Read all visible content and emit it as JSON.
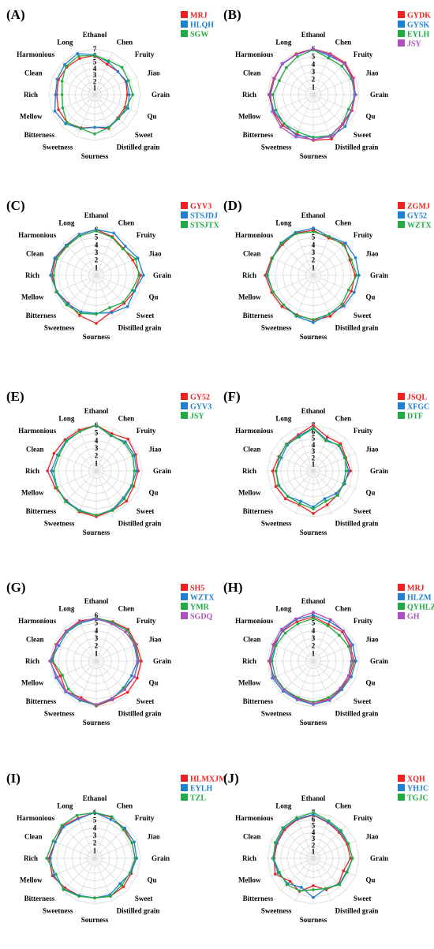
{
  "axes": [
    "Ethanol",
    "Chen",
    "Fruity",
    "Jiao",
    "Grain",
    "Qu",
    "Sweet",
    "Distilled grain",
    "Sourness",
    "Sweetness",
    "Bitterness",
    "Mellow",
    "Rich",
    "Clean",
    "Harmonious",
    "Long"
  ],
  "ticks": [
    "1",
    "2",
    "3",
    "4",
    "5",
    "6",
    "7"
  ],
  "colors": {
    "red": "#ee2222",
    "blue": "#1f7fd0",
    "green": "#22aa44",
    "purple": "#b04fc0"
  },
  "chart_data": [
    {
      "type": "radar",
      "panel": "(A)",
      "rmax": 7,
      "series": [
        {
          "name": "MRJ",
          "color": "red",
          "values": [
            6.0,
            5.0,
            5.0,
            5.2,
            5.0,
            5.0,
            5.0,
            5.6,
            5.0,
            5.5,
            6.0,
            6.0,
            5.8,
            6.0,
            6.0,
            6.0
          ]
        },
        {
          "name": "HLQH",
          "color": "blue",
          "values": [
            6.1,
            5.4,
            5.0,
            5.3,
            5.3,
            5.5,
            5.1,
            5.4,
            5.0,
            5.6,
            6.3,
            6.6,
            6.0,
            6.2,
            6.5,
            6.8
          ]
        },
        {
          "name": "SGW",
          "color": "green",
          "values": [
            6.0,
            5.6,
            5.9,
            5.6,
            5.8,
            5.2,
            5.2,
            5.5,
            6.0,
            5.6,
            6.0,
            5.3,
            5.0,
            5.4,
            6.2,
            6.4
          ]
        }
      ]
    },
    {
      "type": "radar",
      "panel": "(B)",
      "rmax": 6,
      "series": [
        {
          "name": "GYDK",
          "color": "red",
          "values": [
            6.0,
            5.8,
            5.9,
            5.7,
            5.5,
            5.5,
            5.5,
            6.3,
            6.0,
            5.6,
            5.7,
            5.7,
            5.8,
            5.6,
            5.7,
            5.8
          ]
        },
        {
          "name": "GYSK",
          "color": "blue",
          "values": [
            6.0,
            5.5,
            5.8,
            5.5,
            5.4,
            5.4,
            5.9,
            6.0,
            5.6,
            5.8,
            5.4,
            5.6,
            5.7,
            5.5,
            5.7,
            5.7
          ]
        },
        {
          "name": "EYLH",
          "color": "green",
          "values": [
            5.9,
            5.2,
            5.3,
            5.4,
            5.6,
            5.0,
            5.4,
            5.8,
            5.6,
            5.3,
            5.4,
            5.3,
            5.3,
            4.8,
            5.0,
            5.4
          ]
        },
        {
          "name": "JSY",
          "color": "purple",
          "values": [
            6.0,
            5.7,
            5.7,
            5.6,
            5.5,
            5.4,
            5.4,
            5.9,
            5.9,
            6.0,
            6.0,
            5.8,
            5.6,
            5.5,
            5.8,
            5.7
          ]
        }
      ]
    },
    {
      "type": "radar",
      "panel": "(C)",
      "rmax": 6,
      "series": [
        {
          "name": "GYV3",
          "color": "red",
          "values": [
            6.0,
            5.5,
            5.0,
            5.2,
            5.8,
            5.4,
            5.2,
            5.2,
            6.3,
            5.7,
            5.2,
            5.6,
            5.8,
            5.8,
            5.5,
            5.8
          ]
        },
        {
          "name": "STSJDJ",
          "color": "blue",
          "values": [
            6.0,
            6.0,
            5.4,
            5.9,
            6.2,
            5.4,
            5.8,
            5.3,
            5.0,
            5.2,
            5.3,
            5.6,
            6.0,
            5.9,
            5.6,
            5.8
          ]
        },
        {
          "name": "STSJTX",
          "color": "green",
          "values": [
            5.8,
            5.4,
            4.9,
            5.6,
            5.6,
            5.1,
            5.0,
            4.6,
            5.1,
            5.4,
            5.5,
            5.7,
            5.6,
            5.6,
            5.4,
            5.6
          ]
        }
      ]
    },
    {
      "type": "radar",
      "panel": "(D)",
      "rmax": 6,
      "series": [
        {
          "name": "ZGMJ",
          "color": "red",
          "values": [
            5.9,
            5.3,
            5.8,
            5.2,
            5.5,
            5.4,
            5.5,
            5.8,
            5.9,
            5.6,
            5.8,
            5.9,
            6.3,
            5.9,
            5.7,
            6.0
          ]
        },
        {
          "name": "GY52",
          "color": "blue",
          "values": [
            6.2,
            5.5,
            6.0,
            6.0,
            6.0,
            5.8,
            5.7,
            5.5,
            6.2,
            5.8,
            5.5,
            5.7,
            6.1,
            5.8,
            6.0,
            6.1
          ]
        },
        {
          "name": "WZTX",
          "color": "green",
          "values": [
            5.7,
            5.5,
            5.6,
            5.4,
            5.7,
            5.0,
            5.3,
            5.5,
            5.8,
            5.7,
            5.5,
            5.7,
            6.0,
            5.8,
            5.9,
            5.9
          ]
        }
      ]
    },
    {
      "type": "radar",
      "panel": "(E)",
      "rmax": 6,
      "series": [
        {
          "name": "GY52",
          "color": "red",
          "values": [
            6.0,
            5.3,
            5.9,
            5.6,
            5.5,
            5.3,
            5.6,
            5.6,
            6.0,
            5.8,
            5.5,
            5.8,
            6.4,
            6.0,
            5.8,
            5.8
          ]
        },
        {
          "name": "GYV3",
          "color": "blue",
          "values": [
            6.0,
            5.0,
            5.4,
            5.4,
            5.3,
            5.0,
            5.0,
            5.5,
            5.8,
            5.6,
            5.6,
            5.6,
            5.9,
            5.5,
            5.6,
            5.6
          ]
        },
        {
          "name": "JSY",
          "color": "green",
          "values": [
            6.0,
            5.1,
            5.2,
            5.2,
            5.0,
            5.1,
            5.2,
            5.6,
            5.8,
            5.7,
            5.7,
            5.6,
            5.6,
            5.3,
            5.5,
            5.6
          ]
        }
      ]
    },
    {
      "type": "radar",
      "panel": "(F)",
      "rmax": 7,
      "series": [
        {
          "name": "JSQL",
          "color": "red",
          "values": [
            7.0,
            5.6,
            5.9,
            5.4,
            5.7,
            5.0,
            5.2,
            5.6,
            6.5,
            5.6,
            6.0,
            6.2,
            6.2,
            5.7,
            5.8,
            6.0
          ]
        },
        {
          "name": "XFGC",
          "color": "blue",
          "values": [
            6.6,
            5.2,
            5.5,
            5.2,
            5.4,
            5.2,
            4.9,
            4.6,
            5.5,
            5.0,
            5.5,
            5.7,
            5.7,
            5.3,
            5.6,
            5.8
          ]
        },
        {
          "name": "DTF",
          "color": "green",
          "values": [
            6.5,
            5.0,
            5.6,
            5.3,
            5.0,
            5.0,
            5.3,
            5.0,
            5.8,
            5.4,
            5.5,
            5.8,
            5.7,
            5.6,
            5.8,
            5.6
          ]
        }
      ]
    },
    {
      "type": "radar",
      "panel": "(G)",
      "rmax": 6,
      "series": [
        {
          "name": "SH5",
          "color": "red",
          "values": [
            5.6,
            5.6,
            5.9,
            5.7,
            5.9,
            5.8,
            5.8,
            5.5,
            5.9,
            5.2,
            5.6,
            5.1,
            5.8,
            5.7,
            5.6,
            5.7
          ]
        },
        {
          "name": "WZTX",
          "color": "blue",
          "values": [
            5.5,
            5.4,
            5.7,
            5.4,
            5.4,
            5.0,
            5.0,
            5.4,
            5.8,
            5.6,
            5.7,
            5.7,
            6.0,
            5.3,
            5.4,
            5.4
          ]
        },
        {
          "name": "YMR",
          "color": "green",
          "values": [
            5.7,
            5.5,
            5.7,
            5.6,
            5.6,
            5.4,
            5.1,
            5.3,
            5.8,
            5.5,
            5.2,
            4.8,
            5.7,
            5.6,
            5.5,
            5.5
          ]
        },
        {
          "name": "SGDQ",
          "color": "purple",
          "values": [
            5.6,
            5.3,
            5.4,
            5.5,
            5.5,
            5.4,
            5.3,
            5.3,
            5.7,
            5.4,
            5.6,
            5.5,
            6.1,
            5.6,
            5.6,
            5.6
          ]
        }
      ]
    },
    {
      "type": "radar",
      "panel": "(H)",
      "rmax": 6,
      "series": [
        {
          "name": "MRJ",
          "color": "red",
          "values": [
            5.8,
            5.2,
            5.4,
            5.2,
            5.4,
            5.2,
            5.2,
            5.4,
            5.4,
            5.3,
            5.4,
            5.6,
            5.8,
            5.6,
            5.6,
            5.6
          ]
        },
        {
          "name": "HLZM",
          "color": "blue",
          "values": [
            6.0,
            5.6,
            5.6,
            5.6,
            5.6,
            5.4,
            5.3,
            5.6,
            5.7,
            5.5,
            5.6,
            5.8,
            5.6,
            5.4,
            5.7,
            5.9
          ]
        },
        {
          "name": "QYHLZM",
          "color": "green",
          "values": [
            5.6,
            5.0,
            4.8,
            5.0,
            5.2,
            5.0,
            5.1,
            5.2,
            5.4,
            5.2,
            5.3,
            5.4,
            5.4,
            5.3,
            5.2,
            5.3
          ]
        },
        {
          "name": "GH",
          "color": "purple",
          "values": [
            6.4,
            5.9,
            5.6,
            5.4,
            5.0,
            5.0,
            5.0,
            5.5,
            5.6,
            5.4,
            5.4,
            5.6,
            5.7,
            5.7,
            5.9,
            6.0
          ]
        }
      ]
    },
    {
      "type": "radar",
      "panel": "(I)",
      "rmax": 6,
      "series": [
        {
          "name": "HLMXJM",
          "color": "red",
          "values": [
            6.0,
            5.8,
            5.5,
            5.3,
            5.3,
            5.2,
            5.3,
            5.4,
            5.2,
            5.3,
            5.5,
            6.0,
            6.0,
            5.6,
            6.0,
            5.7
          ]
        },
        {
          "name": "EYLH",
          "color": "blue",
          "values": [
            6.0,
            5.5,
            5.6,
            5.6,
            5.5,
            5.1,
            4.7,
            5.2,
            5.2,
            5.3,
            5.7,
            5.8,
            5.8,
            5.6,
            5.8,
            5.6
          ]
        },
        {
          "name": "TZL",
          "color": "green",
          "values": [
            6.0,
            5.9,
            5.3,
            5.3,
            5.3,
            5.0,
            5.0,
            5.4,
            5.2,
            5.4,
            5.8,
            5.5,
            6.3,
            5.9,
            6.1,
            6.1
          ]
        }
      ]
    },
    {
      "type": "radar",
      "panel": "(J)",
      "rmax": 7,
      "series": [
        {
          "name": "XQH",
          "color": "red",
          "values": [
            6.6,
            5.9,
            5.6,
            5.6,
            5.7,
            5.0,
            5.5,
            5.2,
            4.2,
            5.5,
            5.0,
            6.3,
            6.0,
            6.0,
            6.2,
            6.4
          ]
        },
        {
          "name": "YHJC",
          "color": "blue",
          "values": [
            6.7,
            6.0,
            5.8,
            5.8,
            6.0,
            5.5,
            5.6,
            5.0,
            6.0,
            4.8,
            5.5,
            5.8,
            6.2,
            6.1,
            6.4,
            6.5
          ]
        },
        {
          "name": "TGJC",
          "color": "green",
          "values": [
            7.0,
            6.2,
            6.0,
            5.8,
            6.0,
            5.6,
            5.7,
            5.0,
            4.8,
            5.4,
            5.7,
            5.6,
            6.1,
            6.3,
            6.6,
            6.7
          ]
        }
      ]
    }
  ]
}
